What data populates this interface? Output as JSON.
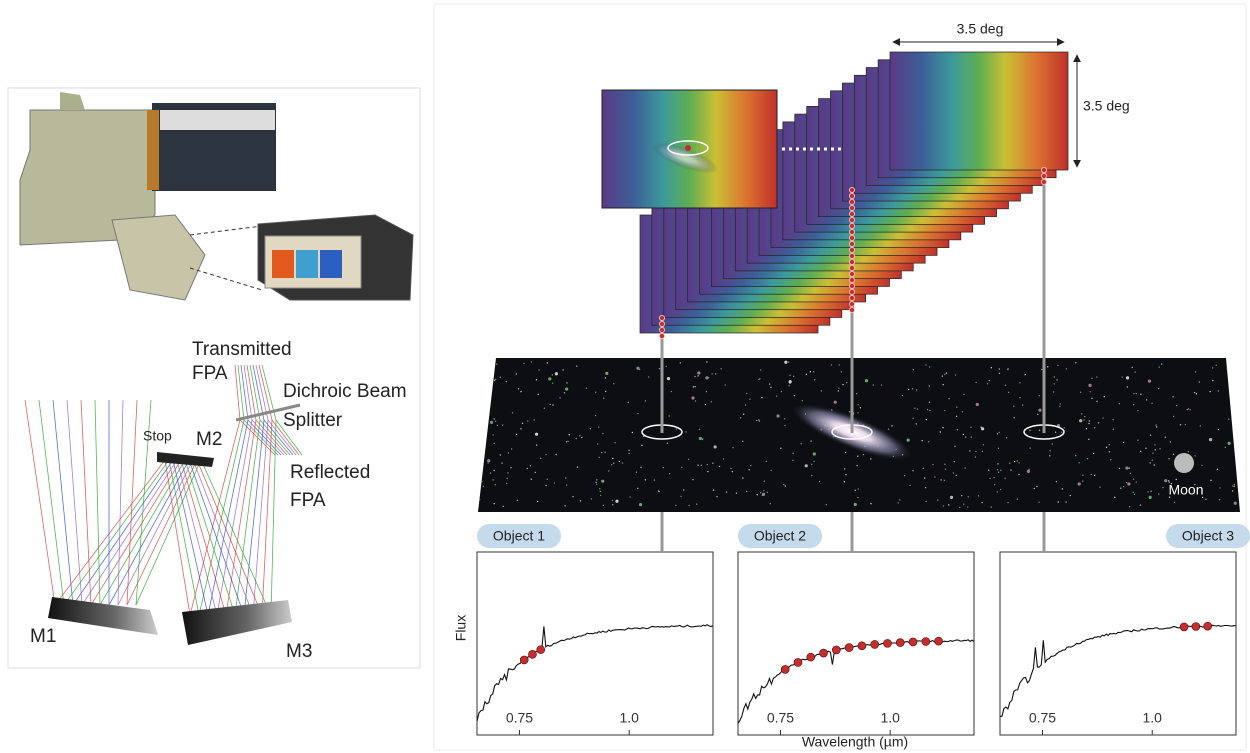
{
  "optics": {
    "transmitted_fpa": [
      "Transmitted",
      "FPA"
    ],
    "dichroic": [
      "Dichroic Beam",
      "Splitter"
    ],
    "reflected_fpa": [
      "Reflected",
      "FPA"
    ],
    "stop": "Stop",
    "m1": "M1",
    "m2": "M2",
    "m3": "M3"
  },
  "cube": {
    "width_label": "3.5 deg",
    "height_label": "3.5 deg"
  },
  "sky": {
    "moon_label": "Moon"
  },
  "spectra": {
    "y_label": "Flux",
    "x_label": "Wavelength (µm)",
    "panels": [
      {
        "title": "Object 1",
        "x_ticks": [
          "0.75",
          "1.0"
        ]
      },
      {
        "title": "Object 2",
        "x_ticks": [
          "0.75",
          "1.0"
        ]
      },
      {
        "title": "Object 3",
        "x_ticks": [
          "0.75",
          "1.0"
        ]
      }
    ]
  }
}
